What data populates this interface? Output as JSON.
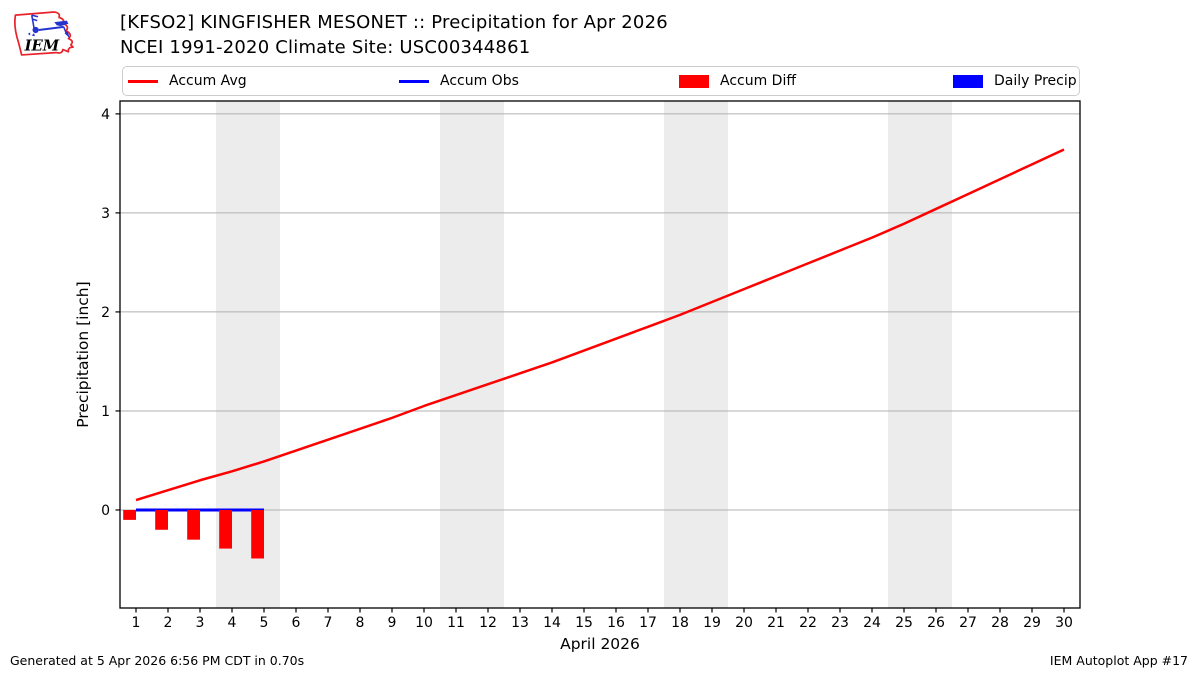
{
  "header": {
    "title": "[KFSO2] KINGFISHER MESONET :: Precipitation for Apr 2026",
    "subtitle": "NCEI 1991-2020 Climate Site: USC00344861"
  },
  "logo": {
    "text": "IEM"
  },
  "legend": {
    "items": [
      {
        "label": "Accum Avg",
        "swatch": "line",
        "color": "#ff0000"
      },
      {
        "label": "Accum Obs",
        "swatch": "line",
        "color": "#0000ff"
      },
      {
        "label": "Accum Diff",
        "swatch": "rect",
        "color": "#ff0000"
      },
      {
        "label": "Daily Precip",
        "swatch": "rect",
        "color": "#0000ff"
      }
    ]
  },
  "footer": {
    "left": "Generated at 5 Apr 2026 6:56 PM CDT in 0.70s",
    "right": "IEM Autoplot App #17"
  },
  "chart_data": {
    "type": "line+bar",
    "xlabel": "April 2026",
    "ylabel": "Precipitation [inch]",
    "x_ticks": [
      1,
      2,
      3,
      4,
      5,
      6,
      7,
      8,
      9,
      10,
      11,
      12,
      13,
      14,
      15,
      16,
      17,
      18,
      19,
      20,
      21,
      22,
      23,
      24,
      25,
      26,
      27,
      28,
      29,
      30
    ],
    "y_ticks": [
      0,
      1,
      2,
      3,
      4
    ],
    "xlim": [
      0.5,
      30.5
    ],
    "ylim": [
      -0.99,
      4.13
    ],
    "grid": "horizontal",
    "grid_color": "#b0b0b0",
    "band_color": "#ececec",
    "weekend_bands": [
      [
        3.5,
        5.5
      ],
      [
        10.5,
        12.5
      ],
      [
        17.5,
        19.5
      ],
      [
        24.5,
        26.5
      ]
    ],
    "series": [
      {
        "name": "Accum Avg",
        "type": "line",
        "color": "#ff0000",
        "width": 2.5,
        "x": [
          1,
          2,
          3,
          4,
          5,
          6,
          7,
          8,
          9,
          10,
          11,
          12,
          13,
          14,
          15,
          16,
          17,
          18,
          19,
          20,
          21,
          22,
          23,
          24,
          25,
          26,
          27,
          28,
          29,
          30
        ],
        "values": [
          0.1,
          0.2,
          0.3,
          0.39,
          0.49,
          0.6,
          0.71,
          0.82,
          0.93,
          1.05,
          1.16,
          1.27,
          1.38,
          1.49,
          1.61,
          1.73,
          1.85,
          1.97,
          2.1,
          2.23,
          2.36,
          2.49,
          2.62,
          2.75,
          2.89,
          3.04,
          3.19,
          3.34,
          3.49,
          3.64
        ]
      },
      {
        "name": "Accum Obs",
        "type": "line",
        "color": "#0000ff",
        "width": 3,
        "x": [
          1,
          2,
          3,
          4,
          5
        ],
        "values": [
          0,
          0,
          0,
          0,
          0
        ]
      },
      {
        "name": "Accum Diff",
        "type": "bar",
        "color": "#ff0000",
        "bar_width": 0.4,
        "bar_align": "right",
        "x": [
          1,
          2,
          3,
          4,
          5
        ],
        "values": [
          -0.1,
          -0.2,
          -0.3,
          -0.39,
          -0.49
        ]
      },
      {
        "name": "Daily Precip",
        "type": "bar",
        "color": "#0000ff",
        "bar_width": 0.4,
        "bar_align": "right",
        "x": [],
        "values": []
      }
    ]
  }
}
